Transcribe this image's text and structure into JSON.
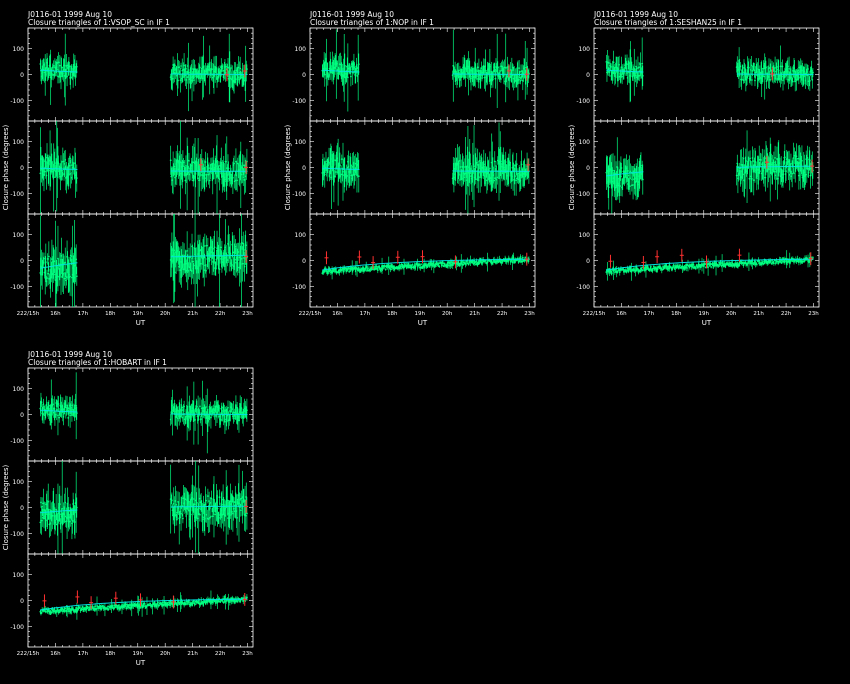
{
  "figures": [
    {
      "title_line1": "J0116-01  1999 Aug 10",
      "title_line2": "Closure triangles of 1:VSOP_SC in IF 1"
    },
    {
      "title_line1": "J0116-01  1999 Aug 10",
      "title_line2": "Closure triangles of 1:NOP in IF 1"
    },
    {
      "title_line1": "J0116-01  1999 Aug 10",
      "title_line2": "Closure triangles of 1:SESHAN25 in IF 1"
    },
    {
      "title_line1": "J0116-01  1999 Aug 10",
      "title_line2": "Closure triangles of 1:HOBART in IF 1"
    }
  ],
  "ylabel": "Closure phase  (degrees)",
  "xlabel": "UT",
  "colors": {
    "background": "#000000",
    "axes": "#ffffff",
    "data": "#00ff80",
    "model": "#00e0e0",
    "flagged": "#ff3030"
  },
  "chart_data": [
    {
      "type": "line",
      "title": "J0116-01  1999 Aug 10 / Closure triangles of 1:VSOP_SC in IF 1",
      "xlabel": "UT",
      "ylabel": "Closure phase  (degrees)",
      "xlim": [
        15.0,
        23.2
      ],
      "x_ticks": [
        "222/15h",
        "16h",
        "17h",
        "18h",
        "19h",
        "20h",
        "21h",
        "22h",
        "23h"
      ],
      "ylim": [
        -180,
        180
      ],
      "y_ticks": [
        "-100",
        "0",
        "100"
      ],
      "panels": [
        {
          "segments": [
            [
              15.45,
              16.8
            ],
            [
              20.2,
              23.0
            ]
          ],
          "model_start": 20,
          "model_end": 0,
          "amp": 30,
          "flagged_x": [
            22.25,
            22.9
          ]
        },
        {
          "segments": [
            [
              15.45,
              16.8
            ],
            [
              20.2,
              23.0
            ]
          ],
          "model_start": 0,
          "model_end": -15,
          "amp": 40,
          "flagged_x": [
            21.3,
            22.95
          ]
        },
        {
          "segments": [
            [
              15.45,
              16.8
            ],
            [
              20.2,
              23.0
            ]
          ],
          "model_start": -40,
          "model_end": 20,
          "amp": 50,
          "flagged_x": [
            22.95
          ]
        }
      ]
    },
    {
      "type": "line",
      "title": "J0116-01  1999 Aug 10 / Closure triangles of 1:NOP in IF 1",
      "xlabel": "UT",
      "ylabel": "Closure phase  (degrees)",
      "xlim": [
        15.0,
        23.2
      ],
      "x_ticks": [
        "222/15h",
        "16h",
        "17h",
        "18h",
        "19h",
        "20h",
        "21h",
        "22h",
        "23h"
      ],
      "ylim": [
        -180,
        180
      ],
      "y_ticks": [
        "-100",
        "0",
        "100"
      ],
      "panels": [
        {
          "segments": [
            [
              15.45,
              16.8
            ],
            [
              20.2,
              23.0
            ]
          ],
          "model_start": 20,
          "model_end": 0,
          "amp": 30,
          "flagged_x": [
            22.25,
            22.9
          ]
        },
        {
          "segments": [
            [
              15.45,
              16.8
            ],
            [
              20.2,
              23.0
            ]
          ],
          "model_start": 0,
          "model_end": -15,
          "amp": 40,
          "flagged_x": [
            22.95
          ]
        },
        {
          "segments": [
            [
              15.45,
              23.0
            ]
          ],
          "model_start": -45,
          "model_end": 5,
          "amp": 8,
          "flagged_x": [
            15.6,
            16.8,
            17.3,
            18.2,
            19.1,
            20.3,
            22.9
          ]
        }
      ]
    },
    {
      "type": "line",
      "title": "J0116-01  1999 Aug 10 / Closure triangles of 1:SESHAN25 in IF 1",
      "xlabel": "UT",
      "ylabel": "Closure phase  (degrees)",
      "xlim": [
        15.0,
        23.2
      ],
      "x_ticks": [
        "222/15h",
        "16h",
        "17h",
        "18h",
        "19h",
        "20h",
        "21h",
        "22h",
        "23h"
      ],
      "ylim": [
        -180,
        180
      ],
      "y_ticks": [
        "-100",
        "0",
        "100"
      ],
      "panels": [
        {
          "segments": [
            [
              15.45,
              16.8
            ],
            [
              20.2,
              23.0
            ]
          ],
          "model_start": 20,
          "model_end": 0,
          "amp": 30,
          "flagged_x": [
            21.5
          ]
        },
        {
          "segments": [
            [
              15.45,
              16.8
            ],
            [
              20.2,
              23.0
            ]
          ],
          "model_start": -40,
          "model_end": 5,
          "amp": 45,
          "flagged_x": [
            21.3,
            22.95
          ]
        },
        {
          "segments": [
            [
              15.45,
              23.0
            ]
          ],
          "model_start": -45,
          "model_end": 5,
          "amp": 8,
          "flagged_x": [
            15.6,
            16.8,
            17.3,
            18.2,
            19.1,
            20.3,
            22.9
          ]
        }
      ]
    },
    {
      "type": "line",
      "title": "J0116-01  1999 Aug 10 / Closure triangles of 1:HOBART in IF 1",
      "xlabel": "UT",
      "ylabel": "Closure phase  (degrees)",
      "xlim": [
        15.0,
        23.2
      ],
      "x_ticks": [
        "222/15h",
        "16h",
        "17h",
        "18h",
        "19h",
        "20h",
        "21h",
        "22h",
        "23h"
      ],
      "ylim": [
        -180,
        180
      ],
      "y_ticks": [
        "-100",
        "0",
        "100"
      ],
      "panels": [
        {
          "segments": [
            [
              15.45,
              16.8
            ],
            [
              20.2,
              23.0
            ]
          ],
          "model_start": 20,
          "model_end": 0,
          "amp": 30,
          "flagged_x": []
        },
        {
          "segments": [
            [
              15.45,
              16.8
            ],
            [
              20.2,
              23.0
            ]
          ],
          "model_start": -25,
          "model_end": 5,
          "amp": 45,
          "flagged_x": [
            22.95
          ]
        },
        {
          "segments": [
            [
              15.45,
              23.0
            ]
          ],
          "model_start": -45,
          "model_end": 5,
          "amp": 8,
          "flagged_x": [
            15.6,
            16.8,
            17.3,
            18.2,
            19.1,
            20.3,
            22.9
          ]
        }
      ]
    }
  ]
}
